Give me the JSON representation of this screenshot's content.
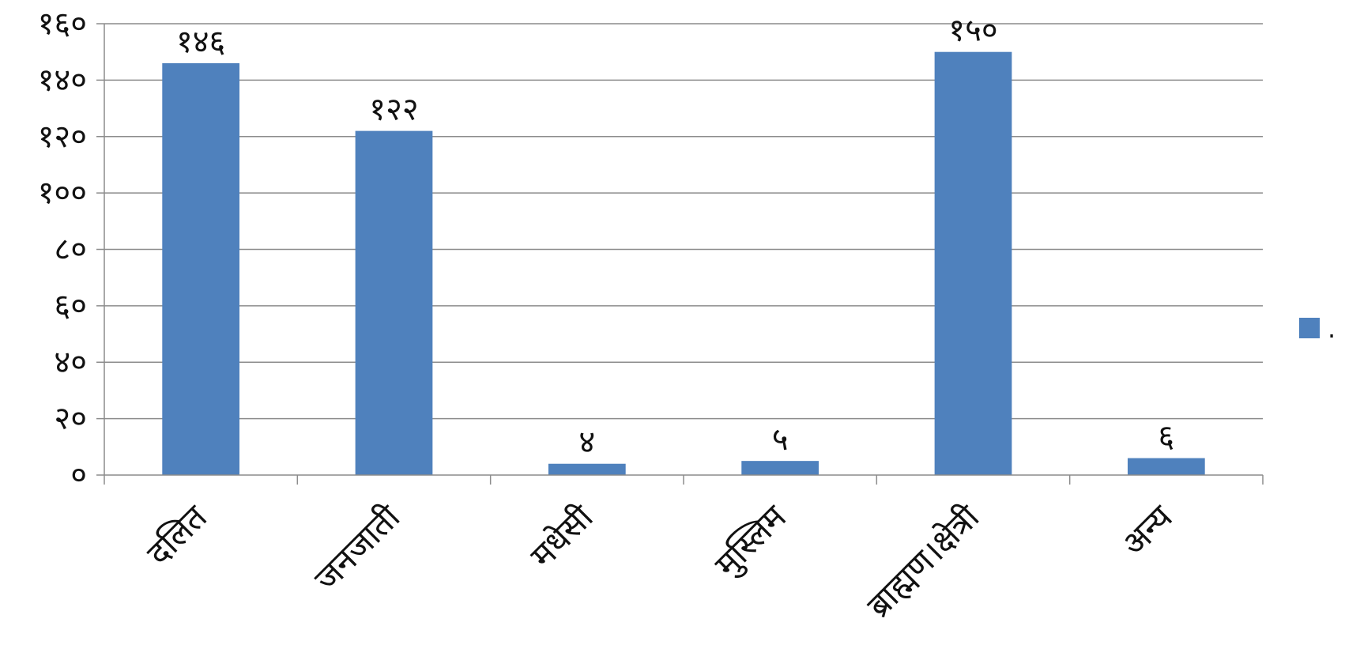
{
  "chart_data": {
    "type": "bar",
    "categories": [
      "दलित",
      "जनजाती",
      "मधेसी",
      "मुस्लिम",
      "ब्राह्मण।क्षेत्री",
      "अन्य"
    ],
    "series": [
      {
        "name": ".",
        "values": [
          146,
          122,
          4,
          5,
          150,
          6
        ],
        "color": "#4f81bd"
      }
    ],
    "value_labels": [
      "१४६",
      "१२२",
      "४",
      "५",
      "१५०",
      "६"
    ],
    "ylim": [
      0,
      160
    ],
    "yticks": [
      0,
      20,
      40,
      60,
      80,
      100,
      120,
      140,
      160
    ],
    "ytick_labels": [
      "०",
      "२०",
      "४०",
      "६०",
      "८०",
      "१००",
      "१२०",
      "१४०",
      "१६०"
    ],
    "title": "",
    "xlabel": "",
    "ylabel": "",
    "grid": true,
    "legend_position": "right"
  }
}
